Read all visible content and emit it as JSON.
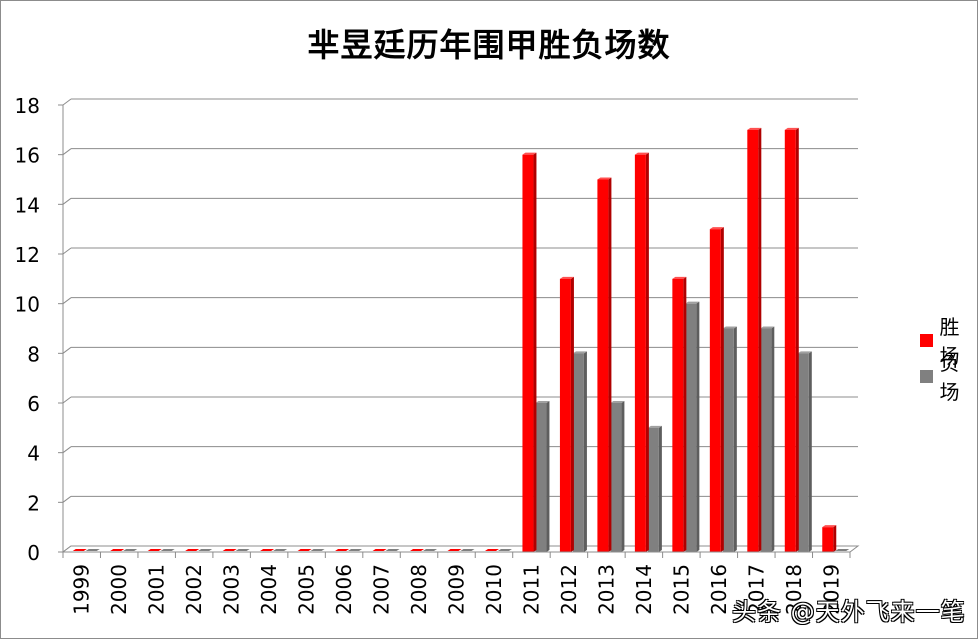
{
  "chart_data": {
    "type": "bar",
    "title": "芈昱廷历年围甲胜负场数",
    "xlabel": "",
    "ylabel": "",
    "ylim": [
      0,
      18
    ],
    "yticks": [
      0,
      2,
      4,
      6,
      8,
      10,
      12,
      14,
      16,
      18
    ],
    "grid": true,
    "legend_position": "right",
    "style": "3d-clustered-column",
    "categories": [
      "1999",
      "2000",
      "2001",
      "2002",
      "2003",
      "2004",
      "2005",
      "2006",
      "2007",
      "2008",
      "2009",
      "2010",
      "2011",
      "2012",
      "2013",
      "2014",
      "2015",
      "2016",
      "2017",
      "2018",
      "2019"
    ],
    "series": [
      {
        "name": "胜场",
        "color": "#ff0000",
        "values": [
          0,
          0,
          0,
          0,
          0,
          0,
          0,
          0,
          0,
          0,
          0,
          0,
          16,
          11,
          15,
          16,
          11,
          13,
          17,
          17,
          1
        ]
      },
      {
        "name": "负场",
        "color": "#808080",
        "values": [
          0,
          0,
          0,
          0,
          0,
          0,
          0,
          0,
          0,
          0,
          0,
          0,
          6,
          8,
          6,
          5,
          10,
          9,
          9,
          8,
          0
        ]
      }
    ]
  },
  "legend": {
    "items": [
      {
        "label": "胜场",
        "color": "#ff0000"
      },
      {
        "label": "负场",
        "color": "#808080"
      }
    ]
  },
  "watermark": "头条 @天外飞来一笔"
}
